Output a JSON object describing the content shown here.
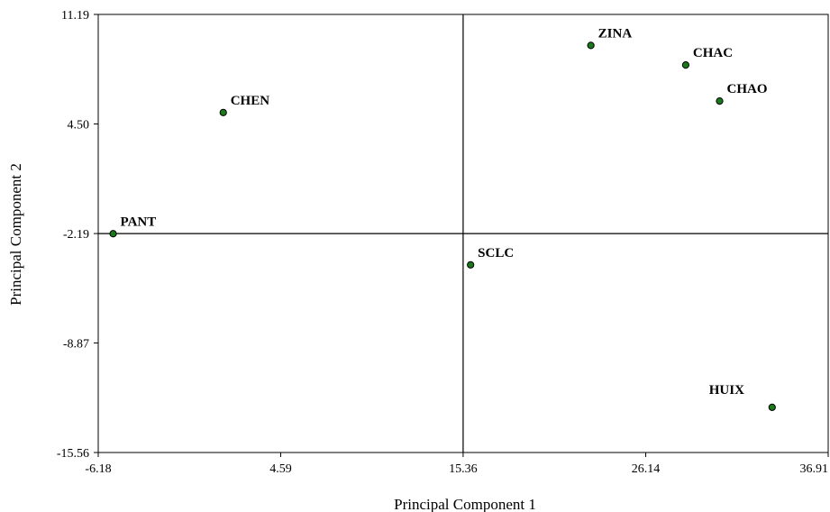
{
  "chart_data": {
    "type": "scatter",
    "title": "",
    "xlabel": "Principal Component 1",
    "ylabel": "Principal Component 2",
    "xlim": [
      -6.18,
      36.91
    ],
    "ylim": [
      -15.56,
      11.19
    ],
    "x_ticks": [
      -6.18,
      4.59,
      15.36,
      26.14,
      36.91
    ],
    "x_tick_labels": [
      "-6.18",
      "4.59",
      "15.36",
      "26.14",
      "36.91"
    ],
    "y_ticks": [
      11.19,
      4.5,
      -2.19,
      -8.87,
      -15.56
    ],
    "y_tick_labels": [
      "11.19",
      "4.50",
      "-2.19",
      "-8.87",
      "-15.56"
    ],
    "reference_lines": {
      "x": 15.36,
      "y": -2.19
    },
    "grid": false,
    "marker_color": "#1a7a1a",
    "points": [
      {
        "label": "PANT",
        "x": -5.3,
        "y": -2.2
      },
      {
        "label": "CHEN",
        "x": 1.2,
        "y": 5.2
      },
      {
        "label": "SCLC",
        "x": 15.8,
        "y": -4.1
      },
      {
        "label": "ZINA",
        "x": 22.9,
        "y": 9.3
      },
      {
        "label": "CHAC",
        "x": 28.5,
        "y": 8.1
      },
      {
        "label": "CHAO",
        "x": 30.5,
        "y": 5.9
      },
      {
        "label": "HUIX",
        "x": 33.6,
        "y": -12.8
      }
    ]
  }
}
